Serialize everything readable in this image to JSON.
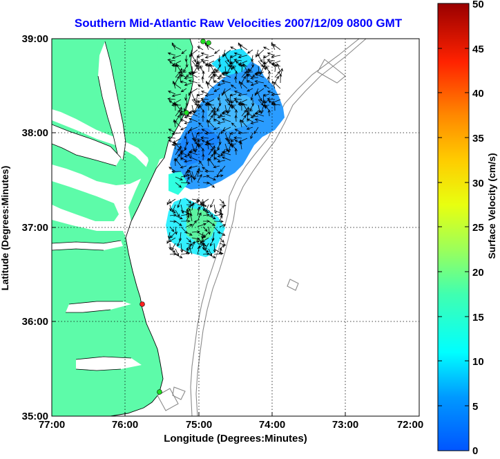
{
  "map": {
    "title": "Southern Mid-Atlantic Raw Velocities 2007/12/09 0800 GMT",
    "xlabel": "Longitude (Degrees:Minutes)",
    "ylabel": "Latitude (Degrees:Minutes)",
    "x_ticks": [
      "77:00",
      "76:00",
      "75:00",
      "74:00",
      "73:00",
      "72:00"
    ],
    "y_ticks": [
      "39:00",
      "38:00",
      "37:00",
      "36:00",
      "35:00"
    ],
    "land_color": "#5dfba9",
    "grid": "dotted"
  },
  "colorbar": {
    "label": "Surface Velocity (cm/s)",
    "ticks": [
      "50",
      "45",
      "40",
      "35",
      "30",
      "25",
      "20",
      "15",
      "10",
      "5",
      "0"
    ],
    "colormap": "jet",
    "range": [
      0,
      50
    ]
  },
  "stations": [
    {
      "color": "#22dd22"
    },
    {
      "color": "#22dd22"
    },
    {
      "color": "#22dd22"
    },
    {
      "color": "#ff2020"
    },
    {
      "color": "#22dd22"
    }
  ],
  "chart_data": {
    "type": "map",
    "title": "Southern Mid-Atlantic Raw Velocities 2007/12/09 0800 GMT",
    "xlabel": "Longitude (Degrees:Minutes)",
    "ylabel": "Latitude (Degrees:Minutes)",
    "xlim": [
      -77,
      -72
    ],
    "ylim": [
      35,
      39
    ],
    "colorbar_range": [
      0,
      50
    ],
    "colorbar_label": "Surface Velocity (cm/s)"
  }
}
